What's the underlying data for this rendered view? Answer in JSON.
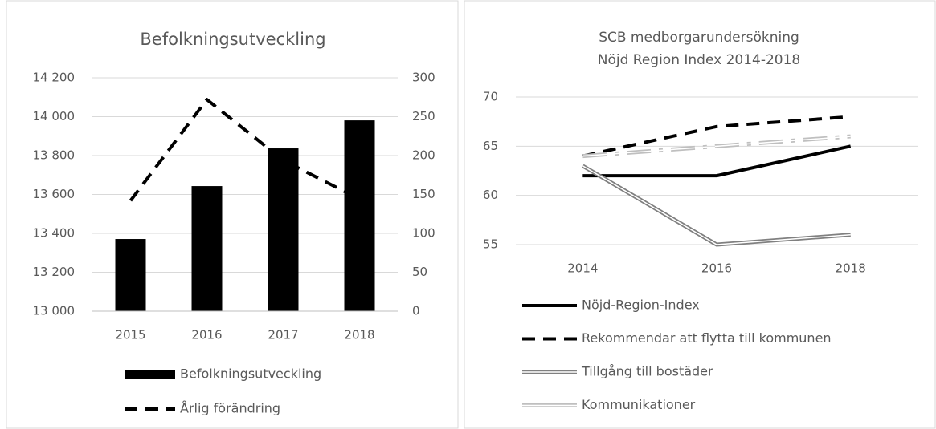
{
  "chart_data": [
    {
      "type": "combo",
      "title": "Befolkningsutveckling",
      "categories": [
        "2015",
        "2016",
        "2017",
        "2018"
      ],
      "ylim": [
        13000,
        14200
      ],
      "yticks": [
        {
          "value": 13000,
          "label": "13 000"
        },
        {
          "value": 13200,
          "label": "13 200"
        },
        {
          "value": 13400,
          "label": "13 400"
        },
        {
          "value": 13600,
          "label": "13 600"
        },
        {
          "value": 13800,
          "label": "13 800"
        },
        {
          "value": 14000,
          "label": "14 000"
        },
        {
          "value": 14200,
          "label": "14 200"
        }
      ],
      "y2lim": [
        0,
        300
      ],
      "y2ticks": [
        0,
        50,
        100,
        150,
        200,
        250,
        300
      ],
      "grid": true,
      "series": [
        {
          "name": "Befolkningsutveckling",
          "type": "bar",
          "color": "#000000",
          "values": [
            13371,
            13643,
            13837,
            13981
          ]
        },
        {
          "name": "Årlig förändring",
          "type": "line",
          "style": "dashed",
          "axis": "y2",
          "color": "#000000",
          "values": [
            142,
            272,
            194,
            144
          ]
        }
      ]
    },
    {
      "type": "line",
      "title": [
        "SCB medborgarundersökning",
        "Nöjd Region Index 2014-2018"
      ],
      "categories": [
        "2014",
        "2016",
        "2018"
      ],
      "ylim": [
        55,
        70
      ],
      "yticks": [
        55,
        60,
        65,
        70
      ],
      "grid": true,
      "series": [
        {
          "name": "Nöjd-Region-Index",
          "style": "solid",
          "color": "#000000",
          "values": [
            62,
            62,
            65
          ]
        },
        {
          "name": "Rekommendar att flytta till kommunen",
          "style": "dashed",
          "color": "#000000",
          "values": [
            64,
            67,
            68
          ]
        },
        {
          "name": "Tillgång till bostäder",
          "style": "double",
          "color": "#808080",
          "values": [
            63,
            55,
            56
          ]
        },
        {
          "name": "Kommunikationer",
          "style": "double-dashdot",
          "color": "#bfbfbf",
          "values": [
            64,
            65,
            66
          ]
        }
      ]
    }
  ]
}
